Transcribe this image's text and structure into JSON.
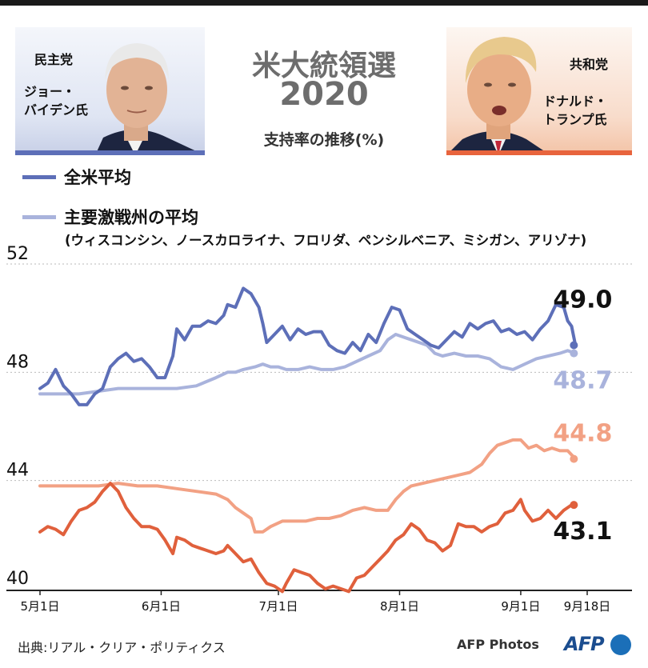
{
  "header": {
    "title_line1": "米大統領選",
    "title_line2": "2020",
    "subtitle": "支持率の推移(%)"
  },
  "candidates": {
    "left": {
      "party": "民主党",
      "name": "ジョー・\nバイデン氏"
    },
    "right": {
      "party": "共和党",
      "name": "ドナルド・\nトランプ氏"
    }
  },
  "legend": {
    "national": "全米平均",
    "swing": "主要激戦州の平均",
    "swing_note": "(ウィスコンシン、ノースカロライナ、フロリダ、ペンシルベニア、ミシガン、アリゾナ)"
  },
  "colors": {
    "biden_national": "#5d6fb8",
    "biden_swing": "#a9b3dc",
    "trump_national": "#e0603c",
    "trump_swing": "#f2a184",
    "axis": "#222222",
    "grid": "#bbbbbb"
  },
  "chart_data": {
    "type": "line",
    "x_start": "5月1日",
    "x_end": "9月18日",
    "x_ticks": [
      {
        "label": "5月1日",
        "day": 0
      },
      {
        "label": "6月1日",
        "day": 31
      },
      {
        "label": "7月1日",
        "day": 61
      },
      {
        "label": "8月1日",
        "day": 92
      },
      {
        "label": "9月1日",
        "day": 123
      },
      {
        "label": "9月18日",
        "day": 140
      }
    ],
    "y_ticks": [
      40,
      44,
      48,
      52
    ],
    "ylim": [
      40,
      52
    ],
    "grid": "horizontal dotted",
    "series": [
      {
        "key": "biden_national",
        "final_label": "49.0",
        "final_value": 49.0,
        "points": [
          [
            0,
            47.4
          ],
          [
            2,
            47.6
          ],
          [
            4,
            48.1
          ],
          [
            6,
            47.5
          ],
          [
            8,
            47.2
          ],
          [
            10,
            46.8
          ],
          [
            12,
            46.8
          ],
          [
            14,
            47.2
          ],
          [
            16,
            47.4
          ],
          [
            18,
            48.2
          ],
          [
            20,
            48.5
          ],
          [
            22,
            48.7
          ],
          [
            24,
            48.4
          ],
          [
            26,
            48.5
          ],
          [
            28,
            48.2
          ],
          [
            30,
            47.8
          ],
          [
            32,
            47.8
          ],
          [
            34,
            48.6
          ],
          [
            35,
            49.6
          ],
          [
            37,
            49.2
          ],
          [
            39,
            49.7
          ],
          [
            41,
            49.7
          ],
          [
            43,
            49.9
          ],
          [
            45,
            49.8
          ],
          [
            47,
            50.1
          ],
          [
            48,
            50.5
          ],
          [
            50,
            50.4
          ],
          [
            52,
            51.1
          ],
          [
            54,
            50.9
          ],
          [
            56,
            50.4
          ],
          [
            57,
            49.8
          ],
          [
            58,
            49.1
          ],
          [
            60,
            49.4
          ],
          [
            62,
            49.7
          ],
          [
            64,
            49.2
          ],
          [
            66,
            49.6
          ],
          [
            68,
            49.4
          ],
          [
            70,
            49.5
          ],
          [
            72,
            49.5
          ],
          [
            74,
            49.0
          ],
          [
            76,
            48.8
          ],
          [
            78,
            48.7
          ],
          [
            80,
            49.1
          ],
          [
            82,
            48.8
          ],
          [
            84,
            49.4
          ],
          [
            86,
            49.1
          ],
          [
            88,
            49.8
          ],
          [
            90,
            50.4
          ],
          [
            92,
            50.3
          ],
          [
            94,
            49.6
          ],
          [
            96,
            49.4
          ],
          [
            98,
            49.2
          ],
          [
            100,
            49.0
          ],
          [
            102,
            48.9
          ],
          [
            104,
            49.2
          ],
          [
            106,
            49.5
          ],
          [
            108,
            49.3
          ],
          [
            110,
            49.8
          ],
          [
            112,
            49.6
          ],
          [
            114,
            49.8
          ],
          [
            116,
            49.9
          ],
          [
            118,
            49.5
          ],
          [
            120,
            49.6
          ],
          [
            122,
            49.4
          ],
          [
            124,
            49.5
          ],
          [
            126,
            49.2
          ],
          [
            128,
            49.6
          ],
          [
            130,
            49.9
          ],
          [
            132,
            50.5
          ],
          [
            134,
            50.4
          ],
          [
            135,
            49.9
          ],
          [
            136,
            49.7
          ],
          [
            137,
            49.0
          ]
        ]
      },
      {
        "key": "biden_swing",
        "final_label": "48.7",
        "final_value": 48.7,
        "points": [
          [
            0,
            47.2
          ],
          [
            5,
            47.2
          ],
          [
            10,
            47.2
          ],
          [
            15,
            47.3
          ],
          [
            20,
            47.4
          ],
          [
            25,
            47.4
          ],
          [
            30,
            47.4
          ],
          [
            35,
            47.4
          ],
          [
            40,
            47.5
          ],
          [
            45,
            47.8
          ],
          [
            48,
            48.0
          ],
          [
            50,
            48.0
          ],
          [
            52,
            48.1
          ],
          [
            55,
            48.2
          ],
          [
            57,
            48.3
          ],
          [
            59,
            48.2
          ],
          [
            61,
            48.2
          ],
          [
            63,
            48.1
          ],
          [
            66,
            48.1
          ],
          [
            69,
            48.2
          ],
          [
            72,
            48.1
          ],
          [
            75,
            48.1
          ],
          [
            78,
            48.2
          ],
          [
            81,
            48.4
          ],
          [
            84,
            48.6
          ],
          [
            87,
            48.8
          ],
          [
            89,
            49.2
          ],
          [
            91,
            49.4
          ],
          [
            93,
            49.3
          ],
          [
            95,
            49.2
          ],
          [
            97,
            49.1
          ],
          [
            99,
            49.0
          ],
          [
            101,
            48.7
          ],
          [
            103,
            48.6
          ],
          [
            106,
            48.7
          ],
          [
            109,
            48.6
          ],
          [
            112,
            48.6
          ],
          [
            115,
            48.5
          ],
          [
            118,
            48.2
          ],
          [
            121,
            48.1
          ],
          [
            124,
            48.3
          ],
          [
            127,
            48.5
          ],
          [
            130,
            48.6
          ],
          [
            133,
            48.7
          ],
          [
            135,
            48.8
          ],
          [
            137,
            48.7
          ]
        ]
      },
      {
        "key": "trump_national",
        "final_label": "43.1",
        "final_value": 43.1,
        "points": [
          [
            0,
            42.1
          ],
          [
            2,
            42.3
          ],
          [
            4,
            42.2
          ],
          [
            6,
            42.0
          ],
          [
            8,
            42.5
          ],
          [
            10,
            42.9
          ],
          [
            12,
            43.0
          ],
          [
            14,
            43.2
          ],
          [
            16,
            43.6
          ],
          [
            18,
            43.9
          ],
          [
            20,
            43.6
          ],
          [
            22,
            43.0
          ],
          [
            24,
            42.6
          ],
          [
            26,
            42.3
          ],
          [
            28,
            42.3
          ],
          [
            30,
            42.2
          ],
          [
            32,
            41.8
          ],
          [
            34,
            41.3
          ],
          [
            35,
            41.9
          ],
          [
            37,
            41.8
          ],
          [
            39,
            41.6
          ],
          [
            41,
            41.5
          ],
          [
            43,
            41.4
          ],
          [
            45,
            41.3
          ],
          [
            47,
            41.4
          ],
          [
            48,
            41.6
          ],
          [
            50,
            41.3
          ],
          [
            52,
            41.0
          ],
          [
            54,
            41.1
          ],
          [
            56,
            40.6
          ],
          [
            58,
            40.2
          ],
          [
            60,
            40.1
          ],
          [
            62,
            39.9
          ],
          [
            63,
            40.2
          ],
          [
            65,
            40.7
          ],
          [
            67,
            40.6
          ],
          [
            69,
            40.5
          ],
          [
            71,
            40.2
          ],
          [
            73,
            40.0
          ],
          [
            75,
            40.1
          ],
          [
            77,
            40.0
          ],
          [
            79,
            39.9
          ],
          [
            81,
            40.4
          ],
          [
            83,
            40.5
          ],
          [
            85,
            40.8
          ],
          [
            87,
            41.1
          ],
          [
            89,
            41.4
          ],
          [
            91,
            41.8
          ],
          [
            93,
            42.0
          ],
          [
            95,
            42.4
          ],
          [
            97,
            42.2
          ],
          [
            99,
            41.8
          ],
          [
            101,
            41.7
          ],
          [
            103,
            41.4
          ],
          [
            105,
            41.6
          ],
          [
            107,
            42.4
          ],
          [
            109,
            42.3
          ],
          [
            111,
            42.3
          ],
          [
            113,
            42.1
          ],
          [
            115,
            42.3
          ],
          [
            117,
            42.4
          ],
          [
            119,
            42.8
          ],
          [
            121,
            42.9
          ],
          [
            123,
            43.3
          ],
          [
            124,
            42.9
          ],
          [
            126,
            42.5
          ],
          [
            128,
            42.6
          ],
          [
            130,
            42.9
          ],
          [
            132,
            42.6
          ],
          [
            134,
            42.9
          ],
          [
            136,
            43.1
          ],
          [
            137,
            43.1
          ]
        ]
      },
      {
        "key": "trump_swing",
        "final_label": "44.8",
        "final_value": 44.8,
        "points": [
          [
            0,
            43.8
          ],
          [
            5,
            43.8
          ],
          [
            10,
            43.8
          ],
          [
            15,
            43.8
          ],
          [
            20,
            43.9
          ],
          [
            25,
            43.8
          ],
          [
            30,
            43.8
          ],
          [
            35,
            43.7
          ],
          [
            40,
            43.6
          ],
          [
            45,
            43.5
          ],
          [
            48,
            43.3
          ],
          [
            50,
            43.0
          ],
          [
            52,
            42.8
          ],
          [
            54,
            42.6
          ],
          [
            55,
            42.1
          ],
          [
            57,
            42.1
          ],
          [
            59,
            42.3
          ],
          [
            62,
            42.5
          ],
          [
            65,
            42.5
          ],
          [
            68,
            42.5
          ],
          [
            71,
            42.6
          ],
          [
            74,
            42.6
          ],
          [
            77,
            42.7
          ],
          [
            80,
            42.9
          ],
          [
            83,
            43.0
          ],
          [
            86,
            42.9
          ],
          [
            89,
            42.9
          ],
          [
            91,
            43.3
          ],
          [
            93,
            43.6
          ],
          [
            95,
            43.8
          ],
          [
            98,
            43.9
          ],
          [
            101,
            44.0
          ],
          [
            104,
            44.1
          ],
          [
            107,
            44.2
          ],
          [
            110,
            44.3
          ],
          [
            113,
            44.6
          ],
          [
            115,
            45.0
          ],
          [
            117,
            45.3
          ],
          [
            119,
            45.4
          ],
          [
            121,
            45.5
          ],
          [
            123,
            45.5
          ],
          [
            125,
            45.2
          ],
          [
            127,
            45.3
          ],
          [
            129,
            45.1
          ],
          [
            131,
            45.2
          ],
          [
            133,
            45.1
          ],
          [
            135,
            45.1
          ],
          [
            137,
            44.8
          ]
        ]
      }
    ]
  },
  "footer": {
    "source": "出典:リアル・クリア・ポリティクス",
    "credit": "AFP Photos",
    "logo": "AFP"
  }
}
